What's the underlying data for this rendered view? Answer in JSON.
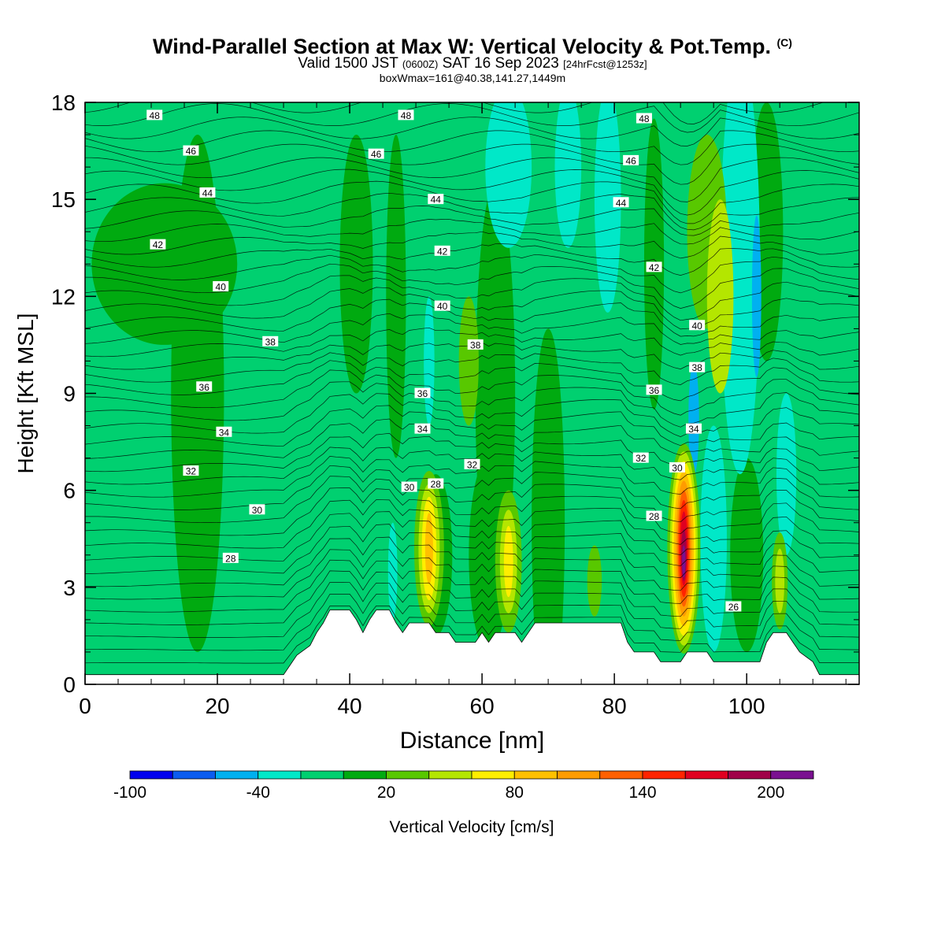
{
  "header": {
    "title_main": "Wind-Parallel Section at Max W: Vertical Velocity & Pot.Temp.",
    "title_mark": "(C)",
    "valid_prefix": "Valid 1500 JST",
    "valid_utc": "(0600Z)",
    "valid_date": "SAT 16 Sep 2023",
    "forecast": "[24hrFcst@1253z]",
    "boxinfo": "boxWmax=161@40.38,141.27,1449m"
  },
  "chart_data": {
    "type": "heatmap",
    "xlabel": "Distance [nm]",
    "ylabel": "Height [Kft MSL]",
    "xlim": [
      0,
      117
    ],
    "ylim": [
      0,
      18
    ],
    "xticks": [
      0,
      20,
      40,
      60,
      80,
      100
    ],
    "yticks": [
      0,
      3,
      6,
      9,
      12,
      15,
      18
    ],
    "colorbar": {
      "label": "Vertical Velocity [cm/s]",
      "levels": [
        -100,
        -80,
        -60,
        -40,
        -20,
        0,
        20,
        40,
        60,
        80,
        100,
        120,
        140,
        160,
        180,
        200,
        220
      ],
      "tick_labels": [
        "-100",
        "-40",
        "20",
        "80",
        "140",
        "200"
      ],
      "tick_values": [
        -100,
        -40,
        20,
        80,
        140,
        200
      ],
      "colors": [
        "#0000ee",
        "#0b5cf0",
        "#00b0f0",
        "#00e8c8",
        "#00d070",
        "#00aa10",
        "#58c800",
        "#b4e600",
        "#ffee00",
        "#ffc000",
        "#ff9c00",
        "#ff6000",
        "#ff2400",
        "#e00020",
        "#a00048",
        "#7a1090"
      ]
    },
    "background_w": "#00d070",
    "w_features": [
      {
        "x": 12,
        "y": 13,
        "w": 22,
        "h": 5,
        "color": "#00aa10"
      },
      {
        "x": 17,
        "y": 9,
        "w": 8,
        "h": 16,
        "color": "#00aa10"
      },
      {
        "x": 41,
        "y": 13,
        "w": 5,
        "h": 8,
        "color": "#00aa10"
      },
      {
        "x": 47,
        "y": 12,
        "w": 3,
        "h": 10,
        "color": "#00aa10"
      },
      {
        "x": 62,
        "y": 9,
        "w": 6,
        "h": 13,
        "color": "#00aa10"
      },
      {
        "x": 70,
        "y": 5,
        "w": 5,
        "h": 12,
        "color": "#00aa10"
      },
      {
        "x": 86,
        "y": 13,
        "w": 3,
        "h": 9,
        "color": "#00aa10"
      },
      {
        "x": 53,
        "y": 4,
        "w": 5,
        "h": 5,
        "color": "#00aa10"
      },
      {
        "x": 61,
        "y": 4,
        "w": 6,
        "h": 6,
        "color": "#00aa10"
      },
      {
        "x": 100,
        "y": 4,
        "w": 5,
        "h": 6,
        "color": "#00aa10"
      },
      {
        "x": 103,
        "y": 14,
        "w": 5,
        "h": 8,
        "color": "#00aa10"
      },
      {
        "x": 64,
        "y": 16,
        "w": 7,
        "h": 5,
        "color": "#00e8c8"
      },
      {
        "x": 73,
        "y": 16,
        "w": 4,
        "h": 5,
        "color": "#00e8c8"
      },
      {
        "x": 79,
        "y": 15,
        "w": 4,
        "h": 7,
        "color": "#00e8c8"
      },
      {
        "x": 99,
        "y": 13,
        "w": 6,
        "h": 13,
        "color": "#00e8c8"
      },
      {
        "x": 95,
        "y": 4.5,
        "w": 4,
        "h": 7,
        "color": "#00e8c8"
      },
      {
        "x": 106,
        "y": 6.5,
        "w": 3,
        "h": 5,
        "color": "#00e8c8"
      },
      {
        "x": 52,
        "y": 10,
        "w": 1.6,
        "h": 4,
        "color": "#00e8c8"
      },
      {
        "x": 46.5,
        "y": 3.5,
        "w": 1.4,
        "h": 3,
        "color": "#00e8c8"
      },
      {
        "x": 101.5,
        "y": 12,
        "w": 1.4,
        "h": 5,
        "color": "#00b0f0"
      },
      {
        "x": 92,
        "y": 8.2,
        "w": 1.6,
        "h": 3.5,
        "color": "#00b0f0"
      },
      {
        "x": 94,
        "y": 14,
        "w": 6,
        "h": 6,
        "color": "#58c800"
      },
      {
        "x": 96,
        "y": 12,
        "w": 4,
        "h": 6,
        "color": "#b4e600"
      },
      {
        "x": 58,
        "y": 10,
        "w": 3,
        "h": 4,
        "color": "#58c800"
      },
      {
        "x": 52,
        "y": 4.2,
        "w": 4.5,
        "h": 4.8,
        "color": "#58c800"
      },
      {
        "x": 52,
        "y": 4.2,
        "w": 3.2,
        "h": 4.0,
        "color": "#b4e600"
      },
      {
        "x": 52,
        "y": 4.2,
        "w": 2.2,
        "h": 3.2,
        "color": "#ffee00"
      },
      {
        "x": 52,
        "y": 4.2,
        "w": 1.2,
        "h": 2.2,
        "color": "#ffc000"
      },
      {
        "x": 64,
        "y": 3.8,
        "w": 4.0,
        "h": 4.4,
        "color": "#58c800"
      },
      {
        "x": 64,
        "y": 3.8,
        "w": 2.6,
        "h": 3.2,
        "color": "#b4e600"
      },
      {
        "x": 64,
        "y": 3.8,
        "w": 1.4,
        "h": 2.2,
        "color": "#ffee00"
      },
      {
        "x": 77,
        "y": 3.2,
        "w": 2.2,
        "h": 2.2,
        "color": "#58c800"
      },
      {
        "x": 105,
        "y": 3.2,
        "w": 2.4,
        "h": 3.0,
        "color": "#58c800"
      },
      {
        "x": 105,
        "y": 3.2,
        "w": 1.4,
        "h": 2.0,
        "color": "#b4e600"
      },
      {
        "x": 90.5,
        "y": 4.2,
        "w": 5.0,
        "h": 6.5,
        "color": "#58c800"
      },
      {
        "x": 90.5,
        "y": 4.2,
        "w": 4.2,
        "h": 6.0,
        "color": "#b4e600"
      },
      {
        "x": 90.5,
        "y": 4.2,
        "w": 3.6,
        "h": 5.4,
        "color": "#ffee00"
      },
      {
        "x": 90.5,
        "y": 4.2,
        "w": 3.0,
        "h": 4.8,
        "color": "#ffc000"
      },
      {
        "x": 90.5,
        "y": 4.2,
        "w": 2.4,
        "h": 4.2,
        "color": "#ff9c00"
      },
      {
        "x": 90.5,
        "y": 4.2,
        "w": 1.9,
        "h": 3.6,
        "color": "#ff6000"
      },
      {
        "x": 90.5,
        "y": 4.2,
        "w": 1.5,
        "h": 3.0,
        "color": "#ff2400"
      },
      {
        "x": 90.5,
        "y": 4.2,
        "w": 1.1,
        "h": 2.3,
        "color": "#e00020"
      },
      {
        "x": 90.5,
        "y": 4.0,
        "w": 0.8,
        "h": 1.6,
        "color": "#a00048"
      },
      {
        "x": 90.5,
        "y": 3.8,
        "w": 0.5,
        "h": 1.0,
        "color": "#7a1090"
      }
    ],
    "terrain": [
      [
        0,
        0.3
      ],
      [
        30,
        0.3
      ],
      [
        31,
        0.6
      ],
      [
        32,
        0.9
      ],
      [
        34,
        1.2
      ],
      [
        35,
        1.6
      ],
      [
        36,
        1.9
      ],
      [
        37,
        2.3
      ],
      [
        40,
        2.3
      ],
      [
        41,
        2.0
      ],
      [
        42,
        1.6
      ],
      [
        43,
        2.0
      ],
      [
        44,
        2.3
      ],
      [
        46,
        2.3
      ],
      [
        47,
        1.9
      ],
      [
        48,
        1.6
      ],
      [
        49,
        1.9
      ],
      [
        52,
        1.9
      ],
      [
        53,
        1.6
      ],
      [
        55,
        1.6
      ],
      [
        56,
        1.3
      ],
      [
        59,
        1.3
      ],
      [
        60,
        1.6
      ],
      [
        61,
        1.3
      ],
      [
        62,
        1.6
      ],
      [
        65,
        1.6
      ],
      [
        66,
        1.3
      ],
      [
        67,
        1.6
      ],
      [
        68,
        1.9
      ],
      [
        81,
        1.9
      ],
      [
        82,
        1.3
      ],
      [
        83,
        1.0
      ],
      [
        86,
        1.0
      ],
      [
        87,
        0.7
      ],
      [
        90,
        0.7
      ],
      [
        91,
        1.0
      ],
      [
        94,
        1.0
      ],
      [
        95,
        0.7
      ],
      [
        102,
        0.7
      ],
      [
        103,
        1.3
      ],
      [
        104,
        1.6
      ],
      [
        106,
        1.6
      ],
      [
        107,
        1.3
      ],
      [
        108,
        1.0
      ],
      [
        110,
        0.7
      ],
      [
        111,
        0.3
      ],
      [
        117,
        0.3
      ]
    ],
    "theta_contour_labels": [
      {
        "text": "48",
        "x": 10.5,
        "y": 17.6
      },
      {
        "text": "48",
        "x": 48.5,
        "y": 17.6
      },
      {
        "text": "48",
        "x": 84.5,
        "y": 17.5
      },
      {
        "text": "46",
        "x": 16,
        "y": 16.5
      },
      {
        "text": "46",
        "x": 44,
        "y": 16.4
      },
      {
        "text": "46",
        "x": 82.5,
        "y": 16.2
      },
      {
        "text": "44",
        "x": 18.5,
        "y": 15.2
      },
      {
        "text": "44",
        "x": 53,
        "y": 15.0
      },
      {
        "text": "44",
        "x": 81,
        "y": 14.9
      },
      {
        "text": "42",
        "x": 11,
        "y": 13.6
      },
      {
        "text": "42",
        "x": 54,
        "y": 13.4
      },
      {
        "text": "42",
        "x": 86,
        "y": 12.9
      },
      {
        "text": "40",
        "x": 20.5,
        "y": 12.3
      },
      {
        "text": "40",
        "x": 54,
        "y": 11.7
      },
      {
        "text": "40",
        "x": 92.5,
        "y": 11.1
      },
      {
        "text": "38",
        "x": 28,
        "y": 10.6
      },
      {
        "text": "38",
        "x": 59,
        "y": 10.5
      },
      {
        "text": "38",
        "x": 92.5,
        "y": 9.8
      },
      {
        "text": "36",
        "x": 18,
        "y": 9.2
      },
      {
        "text": "36",
        "x": 51,
        "y": 9.0
      },
      {
        "text": "36",
        "x": 86,
        "y": 9.1
      },
      {
        "text": "34",
        "x": 21,
        "y": 7.8
      },
      {
        "text": "34",
        "x": 51,
        "y": 7.9
      },
      {
        "text": "34",
        "x": 92,
        "y": 7.9
      },
      {
        "text": "32",
        "x": 16,
        "y": 6.6
      },
      {
        "text": "32",
        "x": 58.5,
        "y": 6.8
      },
      {
        "text": "32",
        "x": 84,
        "y": 7.0
      },
      {
        "text": "30",
        "x": 26,
        "y": 5.4
      },
      {
        "text": "30",
        "x": 49,
        "y": 6.1
      },
      {
        "text": "30",
        "x": 89.5,
        "y": 6.7
      },
      {
        "text": "28",
        "x": 22,
        "y": 3.9
      },
      {
        "text": "28",
        "x": 53,
        "y": 6.2
      },
      {
        "text": "28",
        "x": 86,
        "y": 5.2
      },
      {
        "text": "26",
        "x": 98,
        "y": 2.4
      }
    ]
  }
}
